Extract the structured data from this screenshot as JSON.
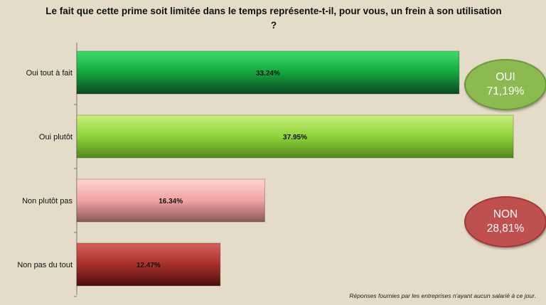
{
  "chart_data": {
    "type": "bar",
    "orientation": "horizontal",
    "title": "Le fait que cette prime soit limitée dans le temps représente-t-il, pour vous, un frein à son utilisation ?",
    "categories": [
      "Oui tout à fait",
      "Oui plutôt",
      "Non plutôt pas",
      "Non pas du tout"
    ],
    "values": [
      33.24,
      37.95,
      16.34,
      12.47
    ],
    "value_labels": [
      "33.24%",
      "37.95%",
      "16.34%",
      "12.47%"
    ],
    "xlim": [
      0,
      40
    ],
    "colors": [
      "#159a3c",
      "#8ed33c",
      "#f0a3a3",
      "#a8302c"
    ],
    "grid": false,
    "legend": "none"
  },
  "annotations": {
    "oui": {
      "label": "OUI",
      "value": "71,19%"
    },
    "non": {
      "label": "NON",
      "value": "28,81%"
    }
  },
  "footnote": "Réponses fournies par les entreprises n'ayant aucun salarié à ce jour."
}
